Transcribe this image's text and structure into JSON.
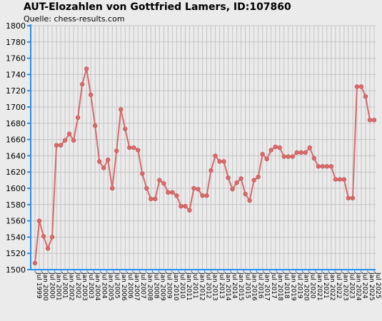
{
  "chart_data": {
    "type": "line",
    "title": "AUT-Elozahlen von Gottfried Lamers, ID:107860",
    "subtitle": "Quelle: chess-results.com",
    "xlabel": "",
    "ylabel": "",
    "ylim": [
      1500,
      1800
    ],
    "yticks": [
      1500,
      1520,
      1540,
      1560,
      1580,
      1600,
      1620,
      1640,
      1660,
      1680,
      1700,
      1720,
      1740,
      1760,
      1780,
      1800
    ],
    "grid": true,
    "legend": "none",
    "line_color": "#d86a6a",
    "axis_color": "#2b8ee8",
    "x_tick_labels": [
      "Jul 1999",
      "Jan 2000",
      "Jul 2000",
      "Jan 2001",
      "Jul 2001",
      "Jan 2002",
      "Jul 2002",
      "Jan 2003",
      "Jul 2003",
      "Jan 2004",
      "Jul 2004",
      "Jan 2005",
      "Jul 2005",
      "Jan 2006",
      "Jul 2006",
      "Jan 2007",
      "Jul 2007",
      "Jan 2008",
      "Jul 2008",
      "Jan 2009",
      "Jul 2009",
      "Jan 2010",
      "Jul 2010",
      "Jan 2011",
      "Jul 2011",
      "Jan 2012",
      "Jul 2012",
      "Jan 2013",
      "Jul 2013",
      "Jan 2014",
      "Jul 2014",
      "Jan 2015",
      "Jul 2015",
      "Jan 2016",
      "Jul 2016",
      "Jan 2017",
      "Jul 2017",
      "Jan 2018",
      "Jul 2018",
      "Jan 2019",
      "Jul 2019",
      "Jan 2020",
      "Jul 2020",
      "Jan 2021",
      "Jul 2021",
      "Jan 2022",
      "Jul 2022",
      "Jan 2023",
      "Jul 2023",
      "Jan 2024",
      "Jul 2024",
      "Jan 2025",
      "Jul 2025"
    ],
    "values": [
      1508,
      1560,
      1541,
      1526,
      1540,
      1653,
      1653,
      1659,
      1667,
      1659,
      1687,
      1728,
      1747,
      1715,
      1677,
      1633,
      1625,
      1635,
      1600,
      1646,
      1697,
      1673,
      1650,
      1650,
      1647,
      1618,
      1600,
      1587,
      1587,
      1610,
      1606,
      1595,
      1595,
      1591,
      1578,
      1578,
      1573,
      1600,
      1599,
      1591,
      1591,
      1622,
      1640,
      1633,
      1633,
      1613,
      1599,
      1607,
      1612,
      1593,
      1585,
      1610,
      1614,
      1642,
      1636,
      1647,
      1651,
      1650,
      1639,
      1639,
      1639,
      1644,
      1644,
      1644,
      1650,
      1637,
      1627,
      1627,
      1627,
      1627,
      1611,
      1611,
      1611,
      1588,
      1588,
      1725,
      1725,
      1713,
      1684,
      1684
    ]
  }
}
